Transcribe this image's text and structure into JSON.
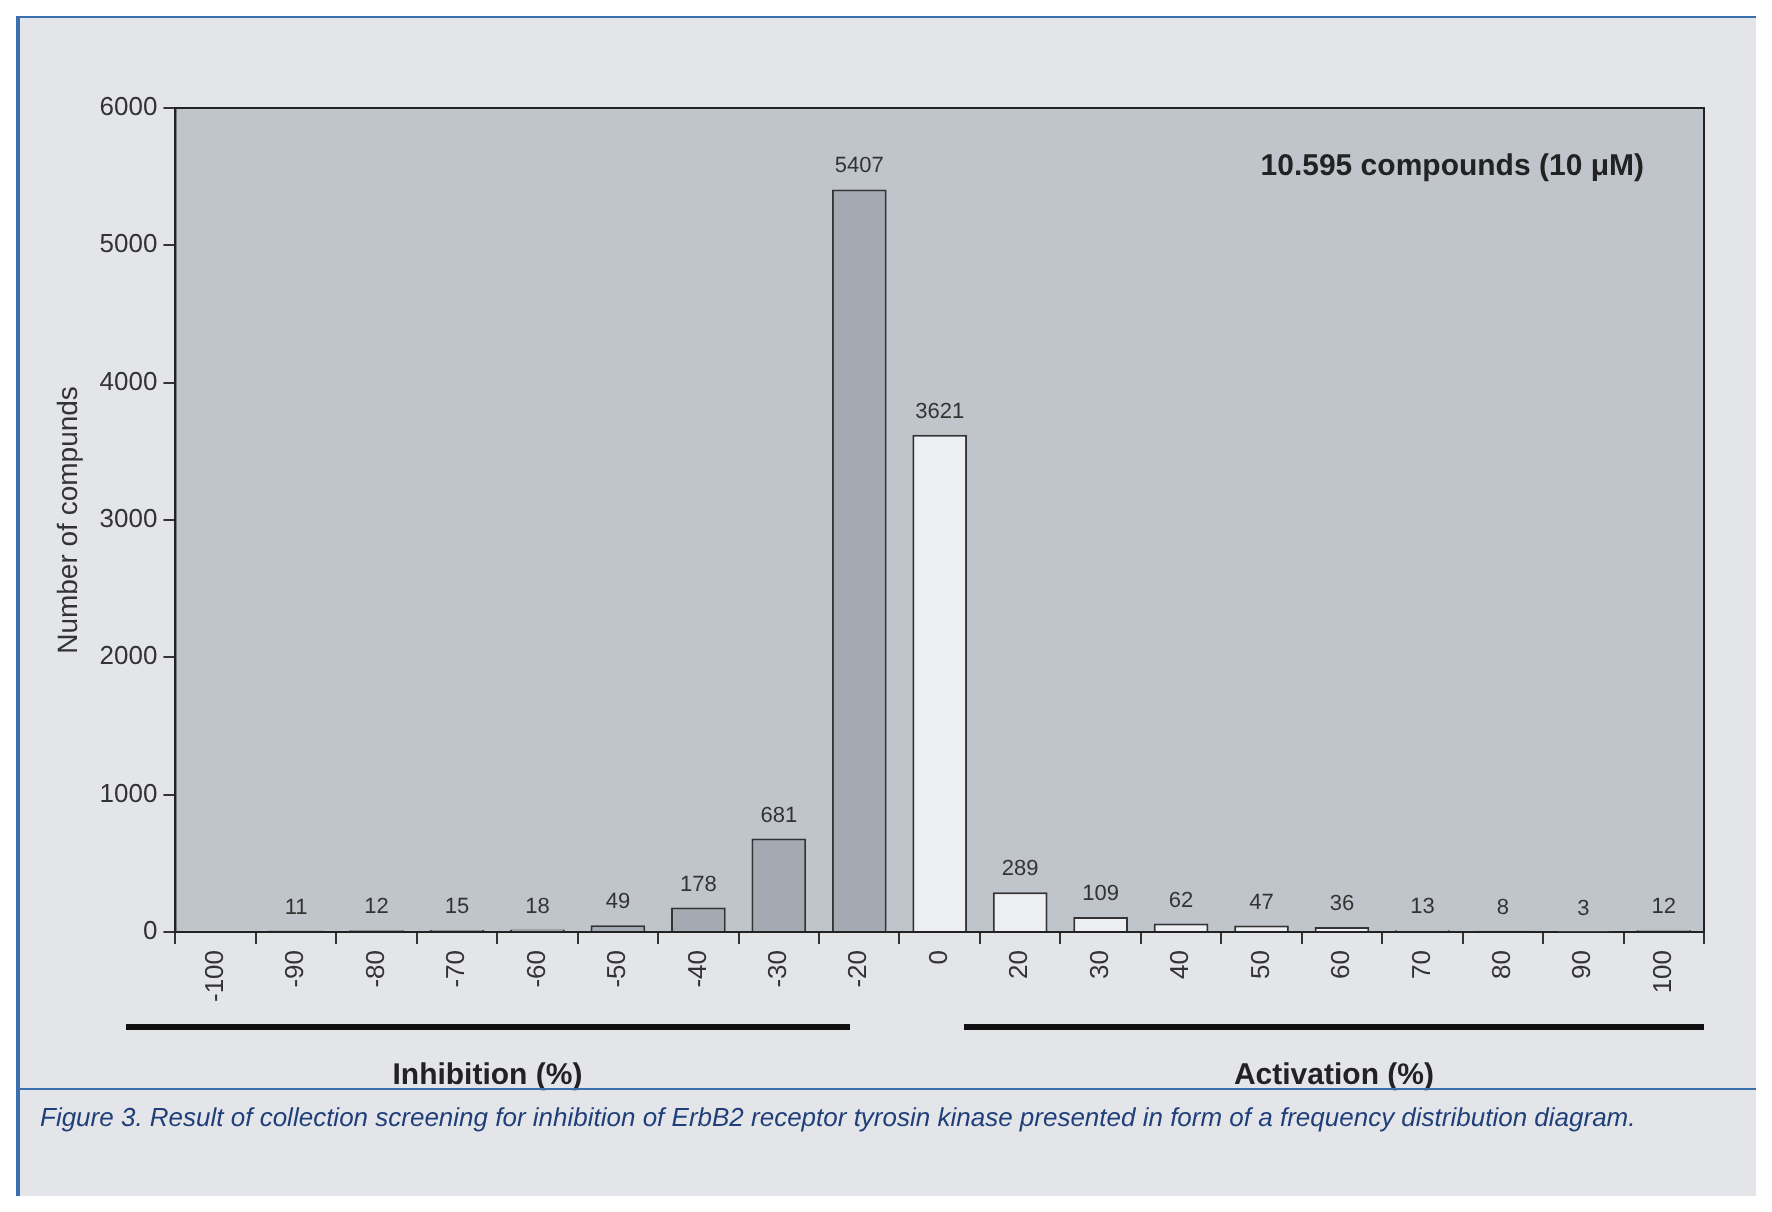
{
  "chart_data": {
    "type": "bar",
    "ylabel": "Number of compunds",
    "categories": [
      "-100",
      "-90",
      "-80",
      "-70",
      "-60",
      "-50",
      "-40",
      "-30",
      "-20",
      "0",
      "20",
      "30",
      "40",
      "50",
      "60",
      "70",
      "80",
      "90",
      "100"
    ],
    "values": [
      null,
      11,
      12,
      15,
      18,
      49,
      178,
      681,
      5407,
      3621,
      289,
      109,
      62,
      47,
      36,
      13,
      8,
      3,
      12
    ],
    "colors": [
      "#a4aab2",
      "#a4aab2",
      "#a4aab2",
      "#a4aab2",
      "#a4aab2",
      "#a4aab2",
      "#a4aab2",
      "#a4aab2",
      "#a4aab2",
      "#eeeff2",
      "#eeeff2",
      "#eeeff2",
      "#eeeff2",
      "#eeeff2",
      "#eeeff2",
      "#eeeff2",
      "#eeeff2",
      "#eeeff2",
      "#eeeff2"
    ],
    "ylim": [
      0,
      6000
    ],
    "yticks": [
      0,
      1000,
      2000,
      3000,
      4000,
      5000,
      6000
    ],
    "grid": false,
    "legend": false,
    "data_labels": true,
    "annotations": [
      "10.595 compounds (10 μM)",
      "Inhibition (%)",
      "Activation (%)",
      "Figure 3. Result of collection screening for inhibition of ErbB2 receptor tyrosin kinase presented in form of a frequency distribution diagram."
    ]
  }
}
